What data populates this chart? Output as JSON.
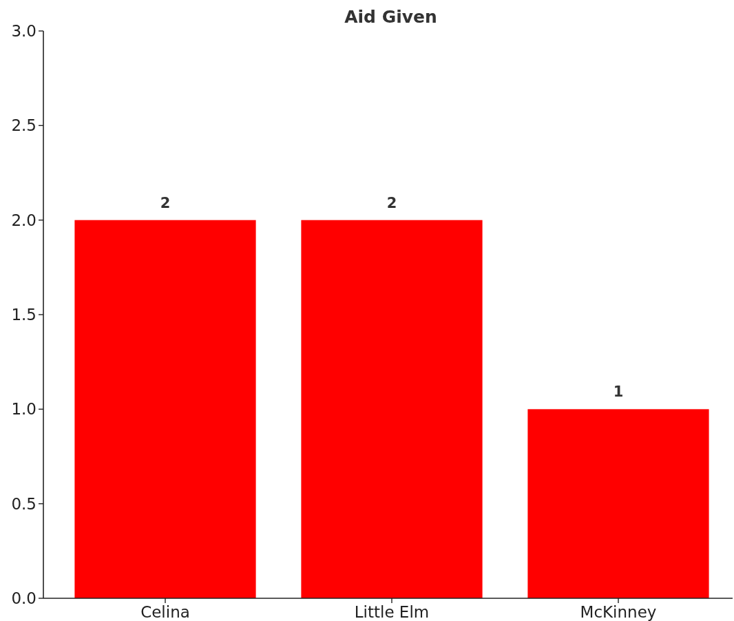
{
  "chart_data": {
    "type": "bar",
    "title": "Aid Given",
    "categories": [
      "Celina",
      "Little Elm",
      "McKinney"
    ],
    "values": [
      2,
      2,
      1
    ],
    "color": "#ff0000",
    "ylim": [
      0,
      3
    ],
    "yticks": [
      {
        "value": 0,
        "label": "0.0"
      },
      {
        "value": 0.5,
        "label": "0.5"
      },
      {
        "value": 1,
        "label": "1.0"
      },
      {
        "value": 1.5,
        "label": "1.5"
      },
      {
        "value": 2,
        "label": "2.0"
      },
      {
        "value": 2.5,
        "label": "2.5"
      },
      {
        "value": 3,
        "label": "3.0"
      }
    ],
    "value_labels": [
      "2",
      "2",
      "1"
    ],
    "grid": false
  }
}
